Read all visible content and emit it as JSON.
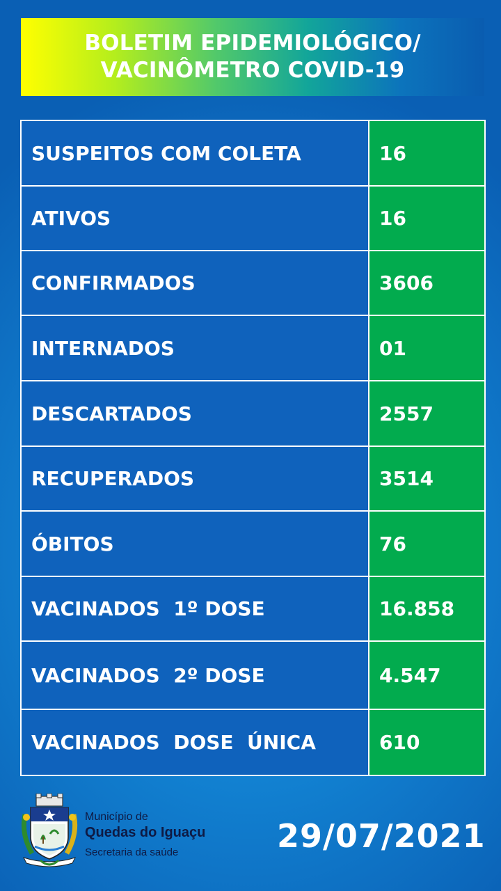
{
  "header": {
    "line1": "BOLETIM EPIDEMIOLÓGICO/",
    "line2": "VACINÔMETRO COVID-19"
  },
  "rows": [
    {
      "label": "SUSPEITOS COM COLETA",
      "value": "16"
    },
    {
      "label": "ATIVOS",
      "value": "16"
    },
    {
      "label": "CONFIRMADOS",
      "value": "3606"
    },
    {
      "label": "INTERNADOS",
      "value": "01"
    },
    {
      "label": "DESCARTADOS",
      "value": "2557"
    },
    {
      "label": "RECUPERADOS",
      "value": "3514"
    },
    {
      "label": "ÓBITOS",
      "value": "76"
    },
    {
      "label": "VACINADOS  1º DOSE",
      "value": "16.858"
    },
    {
      "label": "VACINADOS  2º DOSE",
      "value": "4.547"
    },
    {
      "label": "VACINADOS  DOSE  ÚNICA",
      "value": "610"
    }
  ],
  "footer": {
    "org_prefix": "Município de",
    "org_name": "Quedas do Iguaçu",
    "department": "Secretaria da saúde",
    "date": "29/07/2021"
  },
  "colors": {
    "label_cell": "#0f62bc",
    "value_cell": "#02ab4e",
    "banner_start": "#ffff00",
    "banner_end": "#0a5cb0"
  }
}
